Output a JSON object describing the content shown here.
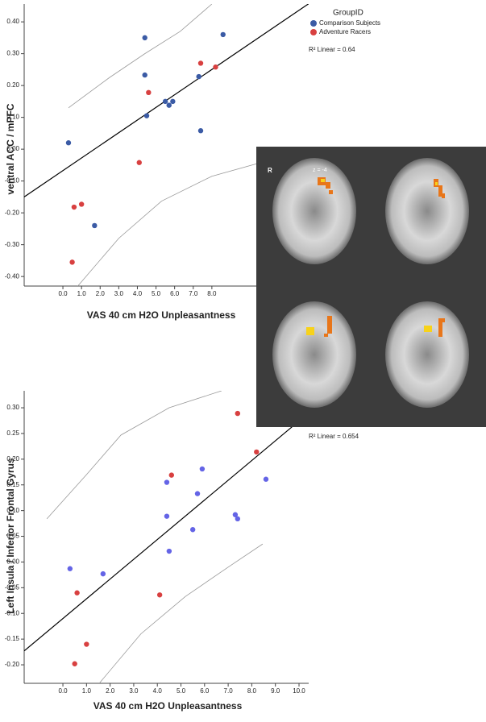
{
  "chart_data": [
    {
      "type": "scatter",
      "x_label": "VAS 40 cm H2O Unpleasantness",
      "y_label": "ventral ACC / mPFC",
      "legend_title": "GroupID",
      "annotation": "R² Linear = 0.64",
      "xlim": [
        -2.08,
        13.2
      ],
      "ylim": [
        -0.43,
        0.456
      ],
      "xticks": [
        {
          "value": 0,
          "label": "0.0"
        },
        {
          "value": 1,
          "label": "1.0"
        },
        {
          "value": 2,
          "label": "2.0"
        },
        {
          "value": 3,
          "label": "3.0"
        },
        {
          "value": 4,
          "label": "4.0"
        },
        {
          "value": 5,
          "label": "5.0"
        },
        {
          "value": 6,
          "label": "6.0"
        },
        {
          "value": 7,
          "label": "7.0"
        },
        {
          "value": 8,
          "label": "8.0"
        }
      ],
      "yticks": [
        {
          "value": -0.4,
          "label": "-0.40"
        },
        {
          "value": -0.3,
          "label": "-0.30"
        },
        {
          "value": -0.2,
          "label": "-0.20"
        },
        {
          "value": -0.1,
          "label": "-0.10"
        },
        {
          "value": 0,
          "label": "0.00"
        },
        {
          "value": 0.1,
          "label": "0.10"
        },
        {
          "value": 0.2,
          "label": "0.20"
        },
        {
          "value": 0.3,
          "label": "0.30"
        },
        {
          "value": 0.4,
          "label": "0.40"
        }
      ],
      "series": [
        {
          "name": "Comparison Subjects",
          "color": "#3b5ba5",
          "x": [
            0.3,
            1.7,
            4.4,
            4.4,
            4.5,
            5.5,
            5.7,
            5.9,
            7.3,
            7.4,
            8.6
          ],
          "values": [
            0.02,
            -0.24,
            0.35,
            0.233,
            0.105,
            0.15,
            0.138,
            0.15,
            0.228,
            0.058,
            0.36
          ]
        },
        {
          "name": "Adventure Racers",
          "color": "#d84040",
          "x": [
            0.5,
            0.6,
            1.0,
            4.1,
            4.6,
            7.4,
            8.2
          ],
          "values": [
            -0.355,
            -0.182,
            -0.173,
            -0.042,
            0.178,
            0.27,
            0.258
          ]
        }
      ],
      "reference_lines": [
        {
          "color": "#000000",
          "x": [
            -2.08,
            13.2
          ],
          "values": [
            -0.15,
            0.457
          ]
        },
        {
          "color": "#999999",
          "x": [
            0.3,
            2.5,
            4.4,
            6.3,
            8.0
          ],
          "values": [
            0.13,
            0.225,
            0.3,
            0.37,
            0.456
          ]
        },
        {
          "color": "#999999",
          "x": [
            0.8,
            3.0,
            5.3,
            8.0,
            13.2
          ],
          "values": [
            -0.43,
            -0.28,
            -0.163,
            -0.085,
            0.0
          ]
        }
      ]
    },
    {
      "type": "scatter",
      "x_label": "VAS 40 cm H2O Unpleasantness",
      "y_label": "Left Insula / Inferior Frontal Gyrus",
      "annotation": "R² Linear = 0.654",
      "xlim": [
        -1.64,
        10.41
      ],
      "ylim": [
        -0.236,
        0.333
      ],
      "xticks": [
        {
          "value": 0,
          "label": "0.0"
        },
        {
          "value": 1,
          "label": "1.0"
        },
        {
          "value": 2,
          "label": "2.0"
        },
        {
          "value": 3,
          "label": "3.0"
        },
        {
          "value": 4,
          "label": "4.0"
        },
        {
          "value": 5,
          "label": "5.0"
        },
        {
          "value": 6,
          "label": "6.0"
        },
        {
          "value": 7,
          "label": "7.0"
        },
        {
          "value": 8,
          "label": "8.0"
        },
        {
          "value": 9,
          "label": "9.0"
        },
        {
          "value": 10,
          "label": "10.0"
        }
      ],
      "yticks": [
        {
          "value": -0.2,
          "label": "-0.20"
        },
        {
          "value": -0.15,
          "label": "-0.15"
        },
        {
          "value": -0.1,
          "label": "-0.10"
        },
        {
          "value": -0.05,
          "label": "-0.05"
        },
        {
          "value": 0,
          "label": "0.00"
        },
        {
          "value": 0.05,
          "label": "0.05"
        },
        {
          "value": 0.1,
          "label": "0.10"
        },
        {
          "value": 0.15,
          "label": "0.15"
        },
        {
          "value": 0.2,
          "label": "0.20"
        },
        {
          "value": 0.25,
          "label": "0.25"
        },
        {
          "value": 0.3,
          "label": "0.30"
        }
      ],
      "series": [
        {
          "color": "#6464e6",
          "x": [
            0.3,
            1.7,
            4.4,
            4.4,
            4.5,
            5.5,
            5.7,
            5.9,
            7.3,
            7.4,
            8.6
          ],
          "values": [
            -0.013,
            -0.023,
            0.155,
            0.089,
            0.021,
            0.063,
            0.133,
            0.181,
            0.092,
            0.084,
            0.161
          ]
        },
        {
          "color": "#d84040",
          "x": [
            0.5,
            0.6,
            1.0,
            4.1,
            4.6,
            7.4,
            8.2
          ],
          "values": [
            -0.198,
            -0.06,
            -0.16,
            -0.064,
            0.169,
            0.289,
            0.214
          ]
        }
      ],
      "reference_lines": [
        {
          "color": "#000000",
          "x": [
            -1.64,
            10.41
          ],
          "values": [
            -0.173,
            0.29
          ]
        },
        {
          "color": "#999999",
          "x": [
            -0.68,
            1.0,
            2.46,
            4.5,
            6.72
          ],
          "values": [
            0.084,
            0.17,
            0.247,
            0.3,
            0.333
          ]
        },
        {
          "color": "#999999",
          "x": [
            1.54,
            3.3,
            5.19,
            7.0,
            8.46
          ],
          "values": [
            -0.236,
            -0.14,
            -0.067,
            -0.01,
            0.035
          ]
        }
      ]
    }
  ],
  "brain_panel": {
    "side": "R",
    "slice": "z = -4"
  }
}
